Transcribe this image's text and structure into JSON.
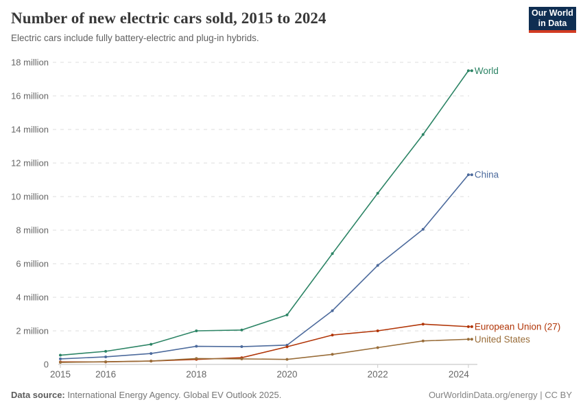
{
  "header": {
    "title": "Number of new electric cars sold, 2015 to 2024",
    "subtitle": "Electric cars include fully battery-electric and plug-in hybrids.",
    "logo": {
      "line1": "Our World",
      "line2": "in Data",
      "bg_color": "#0f2e52",
      "accent_color": "#d23b22"
    }
  },
  "chart_data": {
    "type": "line",
    "title": "Number of new electric cars sold, 2015 to 2024",
    "subtitle": "Electric cars include fully battery-electric and plug-in hybrids.",
    "x": [
      2015,
      2016,
      2017,
      2018,
      2019,
      2020,
      2021,
      2022,
      2023,
      2024
    ],
    "x_tick_labels": [
      "2015",
      "2016",
      "2018",
      "2020",
      "2022",
      "2024"
    ],
    "x_tick_years": [
      2015,
      2016,
      2018,
      2020,
      2022,
      2024
    ],
    "ylabel": "",
    "xlabel": "",
    "ylim_millions": [
      0,
      18
    ],
    "y_tick_step_millions": 2,
    "y_tick_suffix": " million",
    "y_zero_label": "0",
    "grid": true,
    "legend_position": "right-edge-labels",
    "series": [
      {
        "name": "World",
        "color": "#2c8465",
        "values_millions": [
          0.55,
          0.78,
          1.2,
          2.0,
          2.05,
          2.95,
          6.6,
          10.2,
          13.7,
          17.5
        ]
      },
      {
        "name": "China",
        "color": "#4c6a9c",
        "values_millions": [
          0.33,
          0.45,
          0.65,
          1.08,
          1.06,
          1.15,
          3.2,
          5.9,
          8.05,
          11.3
        ]
      },
      {
        "name": "European Union (27)",
        "color": "#b13507",
        "values_millions": [
          0.15,
          0.15,
          0.2,
          0.3,
          0.4,
          1.05,
          1.75,
          2.0,
          2.4,
          2.25
        ]
      },
      {
        "name": "United States",
        "color": "#996d39",
        "values_millions": [
          0.12,
          0.16,
          0.2,
          0.35,
          0.33,
          0.3,
          0.6,
          1.0,
          1.4,
          1.5
        ]
      }
    ],
    "colors": {
      "gridline": "#dcdcdc",
      "axis": "#c9c9c9",
      "tick_label": "#666666"
    }
  },
  "footer": {
    "source_label": "Data source:",
    "source_text": "International Energy Agency. Global EV Outlook 2025.",
    "credit": "OurWorldinData.org/energy | CC BY"
  }
}
